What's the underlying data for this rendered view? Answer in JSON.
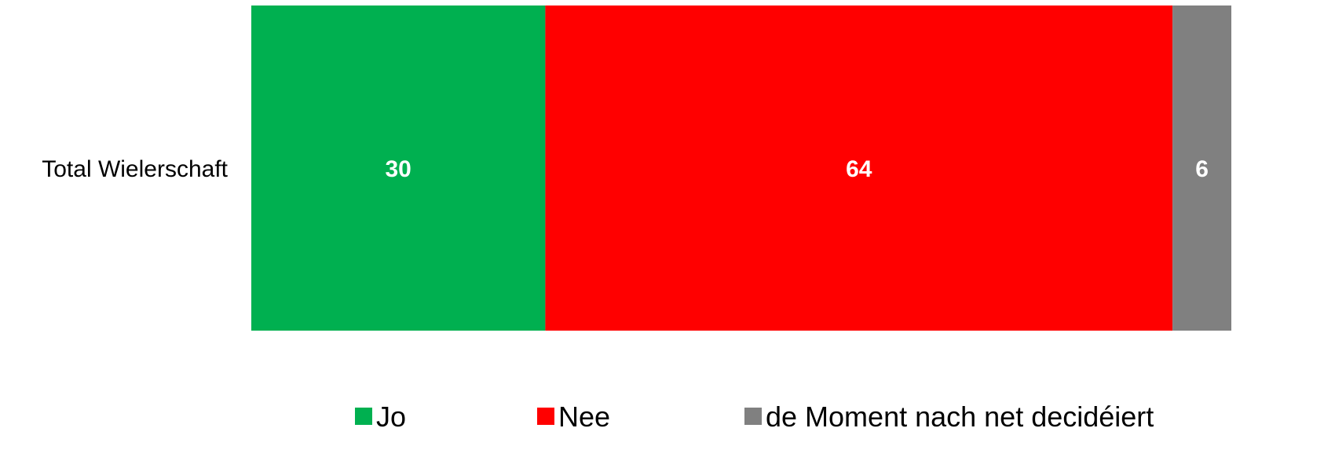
{
  "chart_data": {
    "type": "bar",
    "orientation": "horizontal",
    "stacked": true,
    "categories": [
      "Total Wielerschaft"
    ],
    "series": [
      {
        "name": "Jo",
        "values": [
          30
        ],
        "color": "#00b050"
      },
      {
        "name": "Nee",
        "values": [
          64
        ],
        "color": "#ff0000"
      },
      {
        "name": "de Moment nach net decidéiert",
        "values": [
          6
        ],
        "color": "#808080"
      }
    ],
    "xlim": [
      0,
      100
    ],
    "grid": false,
    "legend_position": "bottom"
  }
}
